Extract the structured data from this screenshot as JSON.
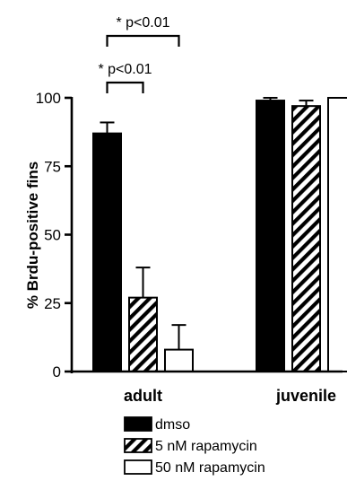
{
  "chart_data": {
    "type": "bar",
    "ylabel": "% Brdu-positive fins",
    "ylim": [
      0,
      100
    ],
    "yticks": [
      0,
      25,
      50,
      75,
      100
    ],
    "categories": [
      "adult",
      "juvenile"
    ],
    "series": [
      {
        "name": "dmso",
        "values": [
          87,
          99
        ],
        "errors": [
          4,
          1
        ],
        "fill": "solid"
      },
      {
        "name": "5 nM rapamycin",
        "values": [
          27,
          97
        ],
        "errors": [
          11,
          2
        ],
        "fill": "hatched"
      },
      {
        "name": "50 nM rapamycin",
        "values": [
          8,
          100
        ],
        "errors": [
          9,
          0
        ],
        "fill": "open"
      }
    ],
    "annotations": [
      {
        "text": "* p<0.01",
        "from_series": 0,
        "to_series": 1,
        "category": 0,
        "level": 1
      },
      {
        "text": "* p<0.01",
        "from_series": 0,
        "to_series": 2,
        "category": 0,
        "level": 2
      }
    ],
    "legend_position": "bottom"
  }
}
